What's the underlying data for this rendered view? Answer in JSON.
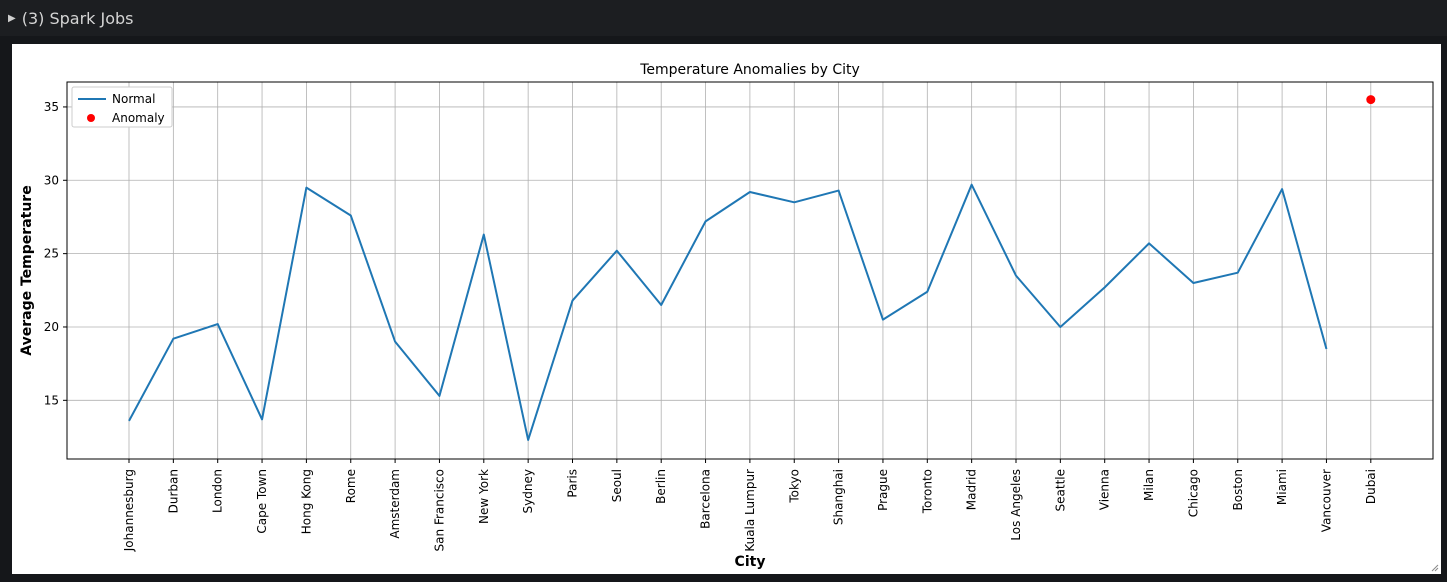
{
  "header": {
    "toggle_icon": "caret-right-icon",
    "title": "(3) Spark Jobs"
  },
  "chart_data": {
    "type": "line",
    "title": "Temperature Anomalies by City",
    "xlabel": "City",
    "ylabel": "Average Temperature",
    "grid": true,
    "legend": "top-left",
    "ylim": [
      11,
      36.7
    ],
    "yticks": [
      15,
      20,
      25,
      30,
      35
    ],
    "categories": [
      "Johannesburg",
      "Durban",
      "London",
      "Cape Town",
      "Hong Kong",
      "Rome",
      "Amsterdam",
      "San Francisco",
      "New York",
      "Sydney",
      "Paris",
      "Seoul",
      "Berlin",
      "Barcelona",
      "Kuala Lumpur",
      "Tokyo",
      "Shanghai",
      "Prague",
      "Toronto",
      "Madrid",
      "Los Angeles",
      "Seattle",
      "Vienna",
      "Milan",
      "Chicago",
      "Boston",
      "Miami",
      "Vancouver",
      "Dubai"
    ],
    "series": [
      {
        "name": "Normal",
        "kind": "line",
        "color": "#1f77b4",
        "values": [
          13.6,
          19.2,
          20.2,
          13.7,
          29.5,
          27.6,
          19.0,
          15.3,
          26.3,
          12.3,
          21.8,
          25.2,
          21.5,
          27.2,
          29.2,
          28.5,
          29.3,
          20.5,
          22.4,
          29.7,
          23.5,
          20.0,
          22.7,
          25.7,
          23.0,
          23.7,
          29.4,
          18.5,
          null
        ]
      },
      {
        "name": "Anomaly",
        "kind": "scatter",
        "color": "#ff0000",
        "values": [
          null,
          null,
          null,
          null,
          null,
          null,
          null,
          null,
          null,
          null,
          null,
          null,
          null,
          null,
          null,
          null,
          null,
          null,
          null,
          null,
          null,
          null,
          null,
          null,
          null,
          null,
          null,
          null,
          35.5
        ]
      }
    ]
  }
}
